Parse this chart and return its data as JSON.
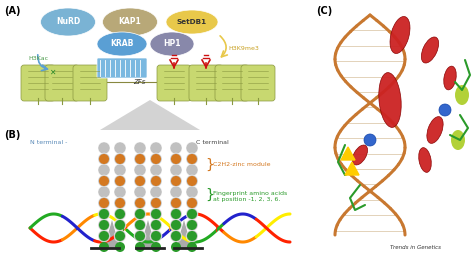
{
  "panel_A_label": "(A)",
  "panel_B_label": "(B)",
  "panel_C_label": "(C)",
  "bg": "#ffffff",
  "nurd_color": "#7ab3d4",
  "kap1_color": "#b8a878",
  "setdb1_color": "#e8c84a",
  "krab_color": "#5a9fd4",
  "hp1_color": "#8888aa",
  "zf_color": "#7ab8e0",
  "nuc_face": "#c8d870",
  "nuc_edge": "#8a9840",
  "h3kac_color": "#4a9a4a",
  "h3k9me3_color": "#c8a020",
  "red_mark": "#cc1111",
  "gray_tri": "#c8c8c8",
  "gray_module": "#c0c0c0",
  "orange_dot": "#d47820",
  "green_dot": "#2a9a2a",
  "dna_top_colors": [
    "#ff2200",
    "#ff8800",
    "#ffee00",
    "#22aa22",
    "#2222cc",
    "#ff2200",
    "#ff8800",
    "#ffee00"
  ],
  "dna_bot_colors": [
    "#22aa22",
    "#2222cc",
    "#ff2200",
    "#ff8800",
    "#ffee00",
    "#22aa22",
    "#2222cc",
    "#ff2200"
  ],
  "trends_text": "Trends in Genetics"
}
